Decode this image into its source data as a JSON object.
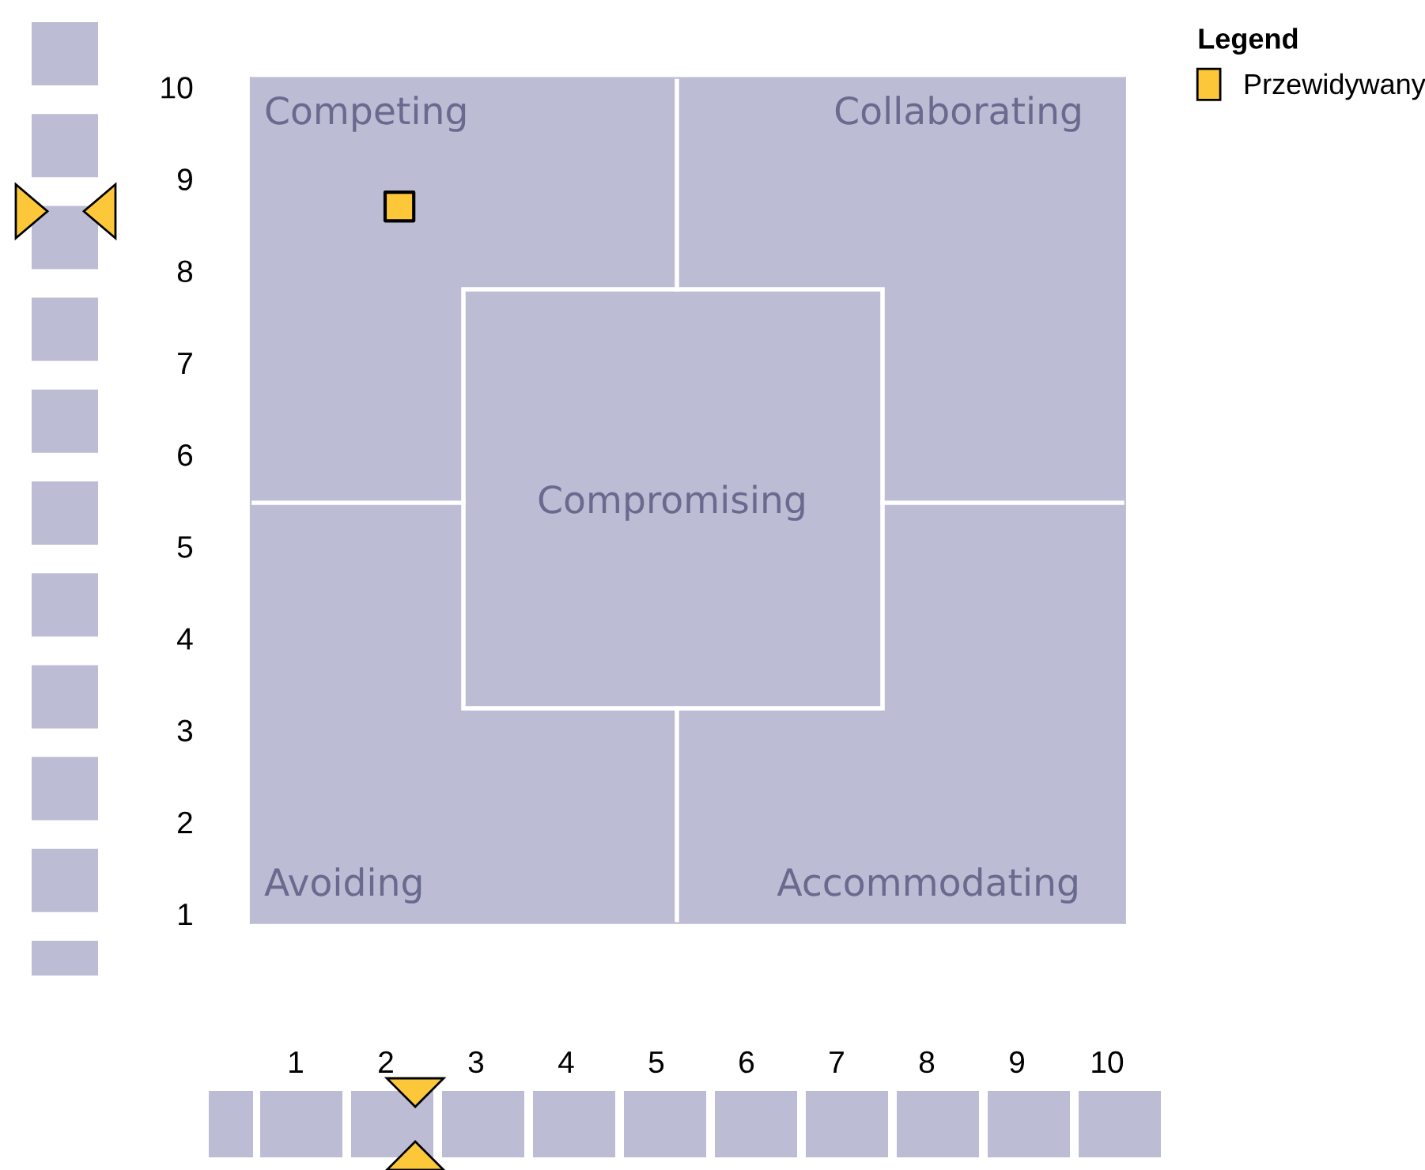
{
  "chart_data": {
    "type": "scatter",
    "x": [
      2.15
    ],
    "series": [
      {
        "name": "Przewidywany",
        "color": "#fcc83a",
        "values": [
          8.7
        ]
      }
    ],
    "xlim": [
      0.5,
      10.2
    ],
    "ylim": [
      0.9,
      10.1
    ],
    "xticks": [
      1,
      2,
      3,
      4,
      5,
      6,
      7,
      8,
      9,
      10
    ],
    "yticks": [
      1,
      2,
      3,
      4,
      5,
      6,
      7,
      8,
      9,
      10
    ],
    "legend": "top right",
    "legend_title": "Legend",
    "marker": "square",
    "grid": false,
    "annotations": [
      "Competing",
      "Collaborating",
      "Compromising",
      "Avoiding",
      "Accommodating"
    ]
  }
}
